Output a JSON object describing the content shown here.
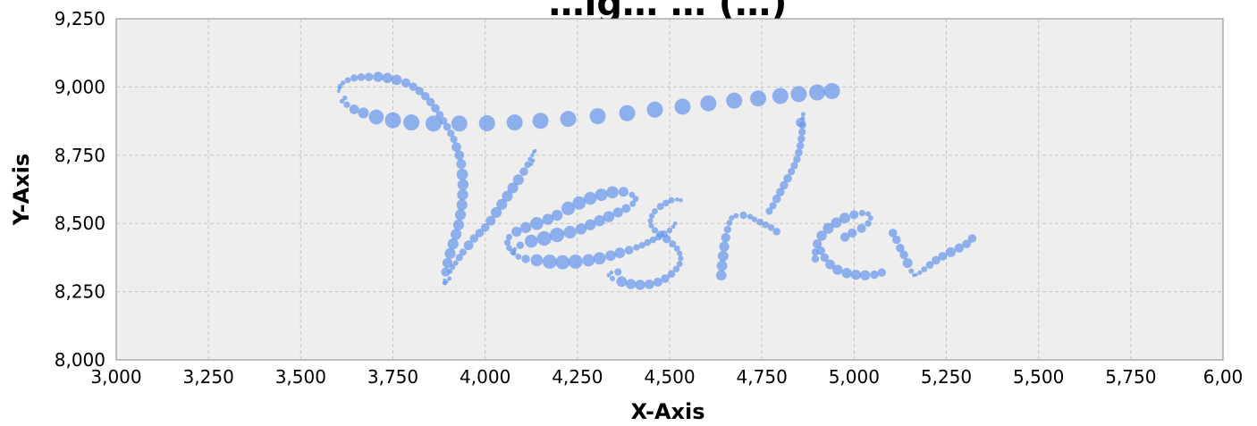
{
  "chart_data": {
    "type": "scatter",
    "title": "…ig… … (…)",
    "xlabel": "X-Axis",
    "ylabel": "Y-Axis",
    "xlim": [
      3000,
      6000
    ],
    "ylim": [
      8000,
      9250
    ],
    "x_ticks": [
      "3,000",
      "3,250",
      "3,500",
      "3,750",
      "4,000",
      "4,250",
      "4,500",
      "4,750",
      "5,000",
      "5,250",
      "5,500",
      "5,750",
      "6,00"
    ],
    "y_ticks": [
      "9,250",
      "9,000",
      "8,750",
      "8,500",
      "8,250",
      "8,000"
    ],
    "grid": true,
    "marker_color": "#6495ED",
    "series": [
      {
        "values": [
          [
            3605,
            8995
          ],
          [
            3603,
            8985
          ],
          [
            3607,
            9003
          ],
          [
            3615,
            9015
          ],
          [
            3628,
            9025
          ],
          [
            3645,
            9033
          ],
          [
            3664,
            9036
          ],
          [
            3685,
            9037
          ],
          [
            3710,
            9037
          ],
          [
            3735,
            9033
          ],
          [
            3760,
            9026
          ],
          [
            3785,
            9015
          ],
          [
            3805,
            9001
          ],
          [
            3822,
            8985
          ],
          [
            3838,
            8966
          ],
          [
            3852,
            8945
          ],
          [
            3865,
            8922
          ],
          [
            3877,
            8898
          ],
          [
            3887,
            8876
          ],
          [
            3897,
            8854
          ],
          [
            3907,
            8830
          ],
          [
            3915,
            8808
          ],
          [
            3620,
            8960
          ],
          [
            3612,
            8948
          ],
          [
            3625,
            8935
          ],
          [
            3645,
            8918
          ],
          [
            3670,
            8905
          ],
          [
            3705,
            8890
          ],
          [
            3750,
            8878
          ],
          [
            3800,
            8870
          ],
          [
            3860,
            8866
          ],
          [
            3930,
            8866
          ],
          [
            4005,
            8867
          ],
          [
            4080,
            8870
          ],
          [
            4150,
            8876
          ],
          [
            4225,
            8883
          ],
          [
            4305,
            8893
          ],
          [
            4385,
            8904
          ],
          [
            4460,
            8917
          ],
          [
            4535,
            8928
          ],
          [
            4605,
            8940
          ],
          [
            4675,
            8950
          ],
          [
            4740,
            8958
          ],
          [
            4800,
            8967
          ],
          [
            4850,
            8974
          ],
          [
            4900,
            8980
          ],
          [
            4940,
            8985
          ],
          [
            3922,
            8780
          ],
          [
            3930,
            8750
          ],
          [
            3935,
            8718
          ],
          [
            3938,
            8680
          ],
          [
            3940,
            8642
          ],
          [
            3939,
            8605
          ],
          [
            3937,
            8568
          ],
          [
            3933,
            8532
          ],
          [
            3928,
            8495
          ],
          [
            3921,
            8460
          ],
          [
            3913,
            8425
          ],
          [
            3905,
            8390
          ],
          [
            3898,
            8355
          ],
          [
            3893,
            8322
          ],
          [
            3890,
            8292
          ],
          [
            3889,
            8282
          ],
          [
            3892,
            8280
          ],
          [
            3896,
            8287
          ],
          [
            3903,
            8298
          ],
          [
            3905,
            8325
          ],
          [
            3912,
            8340
          ],
          [
            3920,
            8355
          ],
          [
            3930,
            8375
          ],
          [
            3940,
            8395
          ],
          [
            3955,
            8420
          ],
          [
            3970,
            8445
          ],
          [
            3985,
            8465
          ],
          [
            4000,
            8485
          ],
          [
            4015,
            8510
          ],
          [
            4030,
            8540
          ],
          [
            4045,
            8570
          ],
          [
            4060,
            8600
          ],
          [
            4075,
            8630
          ],
          [
            4090,
            8660
          ],
          [
            4105,
            8690
          ],
          [
            4115,
            8715
          ],
          [
            4122,
            8735
          ],
          [
            4128,
            8750
          ],
          [
            4132,
            8762
          ],
          [
            4135,
            8766
          ],
          [
            4130,
            8730
          ],
          [
            4125,
            8718
          ],
          [
            4075,
            8395
          ],
          [
            4065,
            8410
          ],
          [
            4060,
            8430
          ],
          [
            4065,
            8450
          ],
          [
            4085,
            8470
          ],
          [
            4110,
            8485
          ],
          [
            4140,
            8500
          ],
          [
            4170,
            8515
          ],
          [
            4195,
            8530
          ],
          [
            4225,
            8555
          ],
          [
            4255,
            8575
          ],
          [
            4285,
            8592
          ],
          [
            4315,
            8605
          ],
          [
            4345,
            8614
          ],
          [
            4375,
            8616
          ],
          [
            4398,
            8605
          ],
          [
            4408,
            8590
          ],
          [
            4400,
            8572
          ],
          [
            4382,
            8555
          ],
          [
            4360,
            8540
          ],
          [
            4335,
            8525
          ],
          [
            4310,
            8510
          ],
          [
            4285,
            8495
          ],
          [
            4260,
            8480
          ],
          [
            4230,
            8468
          ],
          [
            4195,
            8458
          ],
          [
            4160,
            8445
          ],
          [
            4125,
            8435
          ],
          [
            4095,
            8420
          ],
          [
            4080,
            8405
          ],
          [
            4078,
            8390
          ],
          [
            4090,
            8378
          ],
          [
            4110,
            8370
          ],
          [
            4140,
            8365
          ],
          [
            4175,
            8360
          ],
          [
            4210,
            8358
          ],
          [
            4245,
            8360
          ],
          [
            4280,
            8365
          ],
          [
            4310,
            8372
          ],
          [
            4340,
            8382
          ],
          [
            4365,
            8392
          ],
          [
            4390,
            8402
          ],
          [
            4410,
            8412
          ],
          [
            4425,
            8420
          ],
          [
            4440,
            8430
          ],
          [
            4455,
            8440
          ],
          [
            4470,
            8450
          ],
          [
            4485,
            8462
          ],
          [
            4500,
            8475
          ],
          [
            4510,
            8488
          ],
          [
            4515,
            8500
          ],
          [
            4530,
            8585
          ],
          [
            4520,
            8588
          ],
          [
            4505,
            8585
          ],
          [
            4490,
            8575
          ],
          [
            4475,
            8562
          ],
          [
            4460,
            8545
          ],
          [
            4452,
            8528
          ],
          [
            4448,
            8510
          ],
          [
            4450,
            8492
          ],
          [
            4460,
            8475
          ],
          [
            4475,
            8460
          ],
          [
            4492,
            8443
          ],
          [
            4508,
            8425
          ],
          [
            4520,
            8408
          ],
          [
            4527,
            8390
          ],
          [
            4530,
            8372
          ],
          [
            4527,
            8352
          ],
          [
            4518,
            8333
          ],
          [
            4505,
            8315
          ],
          [
            4488,
            8298
          ],
          [
            4468,
            8285
          ],
          [
            4445,
            8277
          ],
          [
            4420,
            8275
          ],
          [
            4395,
            8278
          ],
          [
            4370,
            8287
          ],
          [
            4345,
            8298
          ],
          [
            4335,
            8310
          ],
          [
            4342,
            8320
          ],
          [
            4360,
            8322
          ],
          [
            4640,
            8310
          ],
          [
            4642,
            8345
          ],
          [
            4645,
            8380
          ],
          [
            4648,
            8415
          ],
          [
            4652,
            8448
          ],
          [
            4657,
            8478
          ],
          [
            4662,
            8502
          ],
          [
            4668,
            8520
          ],
          [
            4680,
            8528
          ],
          [
            4700,
            8530
          ],
          [
            4718,
            8525
          ],
          [
            4730,
            8515
          ],
          [
            4745,
            8505
          ],
          [
            4760,
            8495
          ],
          [
            4775,
            8485
          ],
          [
            4790,
            8470
          ],
          [
            4770,
            8545
          ],
          [
            4780,
            8565
          ],
          [
            4790,
            8590
          ],
          [
            4800,
            8615
          ],
          [
            4810,
            8640
          ],
          [
            4820,
            8665
          ],
          [
            4830,
            8690
          ],
          [
            4838,
            8712
          ],
          [
            4845,
            8735
          ],
          [
            4850,
            8760
          ],
          [
            4854,
            8785
          ],
          [
            4857,
            8810
          ],
          [
            4859,
            8835
          ],
          [
            4860,
            8860
          ],
          [
            4861,
            8885
          ],
          [
            4862,
            8900
          ],
          [
            4855,
            8870
          ],
          [
            4910,
            8400
          ],
          [
            4920,
            8375
          ],
          [
            4935,
            8350
          ],
          [
            4955,
            8330
          ],
          [
            4980,
            8318
          ],
          [
            5005,
            8312
          ],
          [
            5030,
            8310
          ],
          [
            5055,
            8312
          ],
          [
            5075,
            8320
          ],
          [
            4895,
            8370
          ],
          [
            4895,
            8395
          ],
          [
            4900,
            8425
          ],
          [
            4912,
            8455
          ],
          [
            4930,
            8482
          ],
          [
            4952,
            8503
          ],
          [
            4975,
            8520
          ],
          [
            5000,
            8532
          ],
          [
            5022,
            8538
          ],
          [
            5038,
            8535
          ],
          [
            5045,
            8520
          ],
          [
            5038,
            8500
          ],
          [
            5020,
            8482
          ],
          [
            4995,
            8465
          ],
          [
            4975,
            8450
          ],
          [
            5105,
            8465
          ],
          [
            5115,
            8440
          ],
          [
            5125,
            8410
          ],
          [
            5135,
            8385
          ],
          [
            5145,
            8355
          ],
          [
            5155,
            8325
          ],
          [
            5162,
            8310
          ],
          [
            5168,
            8312
          ],
          [
            5178,
            8320
          ],
          [
            5190,
            8332
          ],
          [
            5205,
            8348
          ],
          [
            5222,
            8365
          ],
          [
            5240,
            8380
          ],
          [
            5262,
            8395
          ],
          [
            5285,
            8410
          ],
          [
            5305,
            8425
          ],
          [
            5320,
            8445
          ]
        ]
      }
    ]
  }
}
